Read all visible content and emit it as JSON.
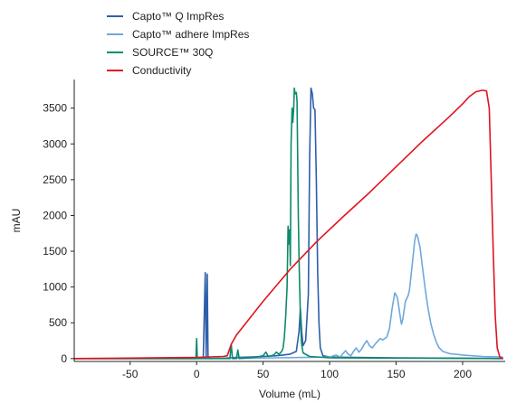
{
  "chart_data": {
    "type": "line",
    "title": "",
    "xlabel": "Volume (mL)",
    "ylabel": "mAU",
    "xlim": [
      -92,
      232
    ],
    "ylim": [
      -40,
      3900
    ],
    "x_ticks": [
      -50,
      0,
      50,
      100,
      150,
      200
    ],
    "y_ticks": [
      0,
      500,
      1000,
      1500,
      2000,
      2500,
      3000,
      3500
    ],
    "grid": false,
    "legend_position": "top-left",
    "series": [
      {
        "name": "Capto™ Q ImpRes",
        "color": "#2e5faa",
        "points": [
          [
            -92,
            0
          ],
          [
            0,
            0
          ],
          [
            5,
            5
          ],
          [
            6.5,
            1200
          ],
          [
            7.2,
            30
          ],
          [
            8,
            1180
          ],
          [
            8.6,
            20
          ],
          [
            10,
            0
          ],
          [
            20,
            5
          ],
          [
            30,
            15
          ],
          [
            40,
            20
          ],
          [
            50,
            30
          ],
          [
            60,
            40
          ],
          [
            70,
            60
          ],
          [
            75,
            100
          ],
          [
            77,
            380
          ],
          [
            78,
            700
          ],
          [
            79,
            380
          ],
          [
            80,
            180
          ],
          [
            82,
            250
          ],
          [
            84,
            900
          ],
          [
            85,
            2800
          ],
          [
            86,
            3780
          ],
          [
            87,
            3700
          ],
          [
            88,
            3500
          ],
          [
            89,
            3480
          ],
          [
            90,
            2500
          ],
          [
            91,
            1200
          ],
          [
            92,
            500
          ],
          [
            93,
            150
          ],
          [
            95,
            40
          ],
          [
            100,
            20
          ],
          [
            150,
            10
          ],
          [
            200,
            5
          ],
          [
            230,
            0
          ]
        ]
      },
      {
        "name": "Capto™ adhere ImpRes",
        "color": "#6fa8dc",
        "points": [
          [
            -92,
            0
          ],
          [
            0,
            0
          ],
          [
            20,
            2
          ],
          [
            40,
            5
          ],
          [
            60,
            10
          ],
          [
            80,
            15
          ],
          [
            100,
            20
          ],
          [
            105,
            50
          ],
          [
            108,
            20
          ],
          [
            110,
            70
          ],
          [
            112,
            110
          ],
          [
            114,
            60
          ],
          [
            116,
            40
          ],
          [
            118,
            100
          ],
          [
            120,
            150
          ],
          [
            122,
            90
          ],
          [
            124,
            130
          ],
          [
            126,
            200
          ],
          [
            128,
            250
          ],
          [
            130,
            180
          ],
          [
            132,
            150
          ],
          [
            135,
            220
          ],
          [
            138,
            280
          ],
          [
            140,
            260
          ],
          [
            143,
            300
          ],
          [
            145,
            420
          ],
          [
            147,
            700
          ],
          [
            149,
            920
          ],
          [
            151,
            850
          ],
          [
            153,
            600
          ],
          [
            154,
            480
          ],
          [
            155,
            550
          ],
          [
            157,
            800
          ],
          [
            159,
            880
          ],
          [
            160,
            950
          ],
          [
            162,
            1300
          ],
          [
            164,
            1650
          ],
          [
            165,
            1740
          ],
          [
            166,
            1720
          ],
          [
            168,
            1550
          ],
          [
            170,
            1250
          ],
          [
            172,
            950
          ],
          [
            174,
            700
          ],
          [
            176,
            500
          ],
          [
            178,
            350
          ],
          [
            180,
            240
          ],
          [
            182,
            160
          ],
          [
            185,
            100
          ],
          [
            190,
            70
          ],
          [
            200,
            50
          ],
          [
            215,
            30
          ],
          [
            230,
            20
          ]
        ]
      },
      {
        "name": "SOURCE™ 30Q",
        "color": "#0d8a6b",
        "points": [
          [
            -92,
            0
          ],
          [
            -0.5,
            0
          ],
          [
            0,
            280
          ],
          [
            0.5,
            0
          ],
          [
            25,
            0
          ],
          [
            26,
            200
          ],
          [
            27,
            0
          ],
          [
            30,
            0
          ],
          [
            31,
            120
          ],
          [
            32,
            0
          ],
          [
            40,
            10
          ],
          [
            45,
            20
          ],
          [
            50,
            40
          ],
          [
            52,
            90
          ],
          [
            54,
            30
          ],
          [
            58,
            50
          ],
          [
            60,
            90
          ],
          [
            62,
            60
          ],
          [
            64,
            100
          ],
          [
            65,
            150
          ],
          [
            66,
            300
          ],
          [
            67,
            600
          ],
          [
            68,
            1000
          ],
          [
            68.8,
            1850
          ],
          [
            69.3,
            1600
          ],
          [
            70,
            1800
          ],
          [
            70.5,
            1300
          ],
          [
            71,
            3000
          ],
          [
            71.8,
            3500
          ],
          [
            72.3,
            3300
          ],
          [
            73,
            3500
          ],
          [
            73.5,
            3780
          ],
          [
            74,
            3700
          ],
          [
            75,
            3720
          ],
          [
            75.5,
            3600
          ],
          [
            76,
            2800
          ],
          [
            76.5,
            2000
          ],
          [
            77,
            1400
          ],
          [
            77.5,
            1000
          ],
          [
            78,
            600
          ],
          [
            78.5,
            350
          ],
          [
            79,
            200
          ],
          [
            80,
            80
          ],
          [
            85,
            30
          ],
          [
            100,
            10
          ],
          [
            230,
            0
          ]
        ]
      },
      {
        "name": "Conductivity",
        "color": "#e0141e",
        "points": [
          [
            -92,
            0
          ],
          [
            0,
            15
          ],
          [
            20,
            30
          ],
          [
            23,
            40
          ],
          [
            26,
            200
          ],
          [
            30,
            330
          ],
          [
            50,
            800
          ],
          [
            70,
            1240
          ],
          [
            90,
            1630
          ],
          [
            110,
            1980
          ],
          [
            130,
            2320
          ],
          [
            150,
            2680
          ],
          [
            170,
            3040
          ],
          [
            190,
            3380
          ],
          [
            200,
            3560
          ],
          [
            205,
            3660
          ],
          [
            210,
            3730
          ],
          [
            215,
            3750
          ],
          [
            218,
            3740
          ],
          [
            220,
            3500
          ],
          [
            221.5,
            2500
          ],
          [
            223,
            1500
          ],
          [
            224.5,
            600
          ],
          [
            226,
            150
          ],
          [
            228,
            20
          ],
          [
            230,
            0
          ]
        ]
      }
    ]
  }
}
